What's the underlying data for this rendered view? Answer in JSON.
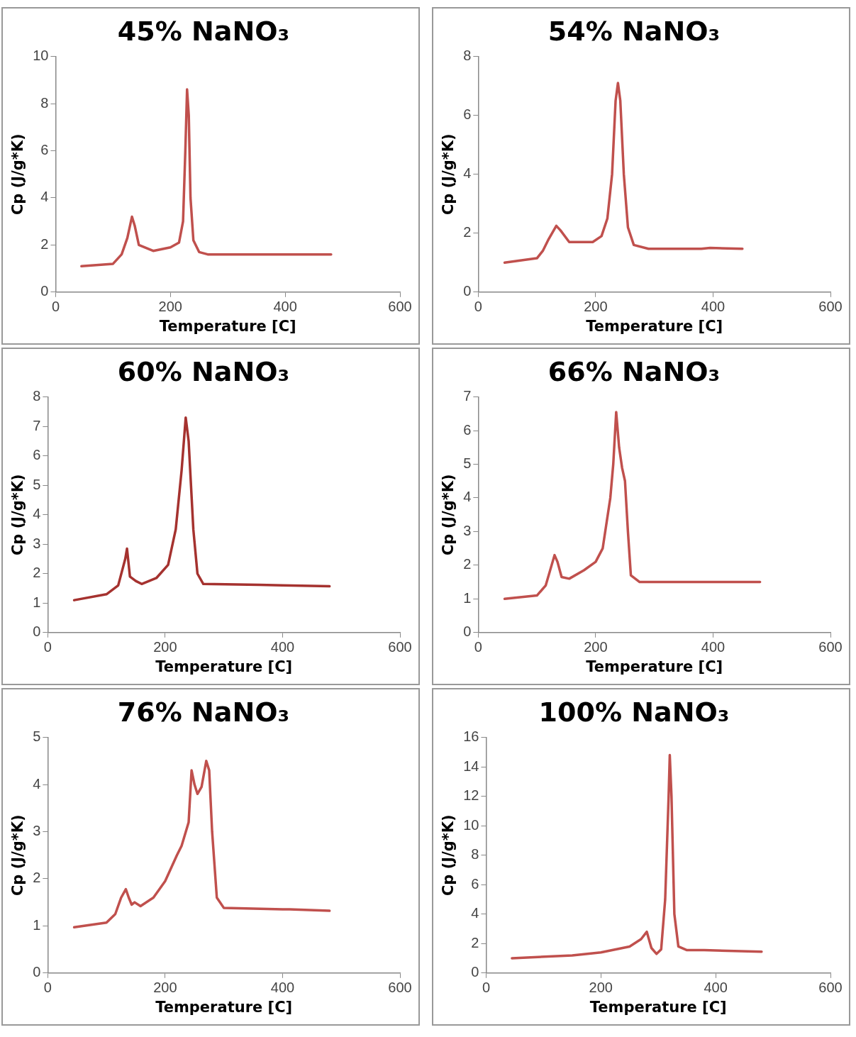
{
  "chart_data": [
    {
      "type": "line",
      "title": "45% NaNO₃",
      "xlabel": "Temperature [C]",
      "ylabel": "Cp (J/g*K)",
      "xlim": [
        0,
        600
      ],
      "xticks": [
        0,
        200,
        400,
        600
      ],
      "ylim": [
        0,
        10
      ],
      "yticks": [
        0,
        2,
        4,
        6,
        8,
        10
      ],
      "grid": false,
      "legend": false,
      "marker": "none",
      "line_style": "solid",
      "color": "#c0504d",
      "x": [
        45,
        100,
        115,
        125,
        133,
        138,
        145,
        170,
        200,
        215,
        222,
        226,
        229,
        232,
        235,
        240,
        250,
        265,
        400,
        480
      ],
      "values": [
        1.1,
        1.2,
        1.6,
        2.3,
        3.2,
        2.8,
        2.0,
        1.75,
        1.9,
        2.1,
        3,
        6,
        8.6,
        7.5,
        4,
        2.2,
        1.7,
        1.6,
        1.6,
        1.6
      ]
    },
    {
      "type": "line",
      "title": "54% NaNO₃",
      "xlabel": "Temperature [C]",
      "ylabel": "Cp (J/g*K)",
      "xlim": [
        0,
        600
      ],
      "xticks": [
        0,
        200,
        400,
        600
      ],
      "ylim": [
        0,
        8
      ],
      "yticks": [
        0,
        2,
        4,
        6,
        8
      ],
      "grid": false,
      "legend": false,
      "marker": "none",
      "line_style": "solid",
      "color": "#c0504d",
      "x": [
        45,
        100,
        110,
        120,
        133,
        140,
        155,
        175,
        195,
        210,
        220,
        228,
        234,
        238,
        242,
        248,
        255,
        265,
        290,
        380,
        395,
        450
      ],
      "values": [
        1.0,
        1.15,
        1.4,
        1.8,
        2.25,
        2.1,
        1.7,
        1.7,
        1.7,
        1.9,
        2.5,
        4,
        6.5,
        7.1,
        6.5,
        4,
        2.2,
        1.6,
        1.47,
        1.47,
        1.5,
        1.47
      ]
    },
    {
      "type": "line",
      "title": "60% NaNO₃",
      "xlabel": "Temperature [C]",
      "ylabel": "Cp (J/g*K)",
      "xlim": [
        0,
        600
      ],
      "xticks": [
        0,
        200,
        400,
        600
      ],
      "ylim": [
        0,
        8
      ],
      "yticks": [
        0,
        1,
        2,
        3,
        4,
        5,
        6,
        7,
        8
      ],
      "grid": false,
      "legend": false,
      "marker": "none",
      "line_style": "solid",
      "color": "#a5322f",
      "x": [
        45,
        100,
        120,
        132,
        135,
        140,
        150,
        160,
        185,
        205,
        218,
        228,
        235,
        240,
        248,
        255,
        265,
        360,
        400,
        480
      ],
      "values": [
        1.1,
        1.3,
        1.6,
        2.5,
        2.85,
        1.9,
        1.75,
        1.65,
        1.85,
        2.3,
        3.5,
        5.5,
        7.3,
        6.5,
        3.5,
        2.0,
        1.65,
        1.62,
        1.6,
        1.57
      ]
    },
    {
      "type": "line",
      "title": "66% NaNO₃",
      "xlabel": "Temperature [C]",
      "ylabel": "Cp (J/g*K)",
      "xlim": [
        0,
        600
      ],
      "xticks": [
        0,
        200,
        400,
        600
      ],
      "ylim": [
        0,
        7
      ],
      "yticks": [
        0,
        1,
        2,
        3,
        4,
        5,
        6,
        7
      ],
      "grid": false,
      "legend": false,
      "marker": "none",
      "line_style": "solid",
      "color": "#c0504d",
      "x": [
        45,
        100,
        115,
        125,
        130,
        135,
        142,
        155,
        180,
        200,
        212,
        225,
        230,
        235,
        240,
        245,
        250,
        255,
        260,
        275,
        400,
        480
      ],
      "values": [
        1.0,
        1.1,
        1.4,
        2.0,
        2.3,
        2.1,
        1.65,
        1.6,
        1.85,
        2.1,
        2.5,
        4,
        5,
        6.55,
        5.5,
        4.9,
        4.5,
        3,
        1.7,
        1.5,
        1.5,
        1.5
      ]
    },
    {
      "type": "line",
      "title": "76% NaNO₃",
      "xlabel": "Temperature [C]",
      "ylabel": "Cp (J/g*K)",
      "xlim": [
        0,
        600
      ],
      "xticks": [
        0,
        200,
        400,
        600
      ],
      "ylim": [
        0,
        5
      ],
      "yticks": [
        0,
        1,
        2,
        3,
        4,
        5
      ],
      "grid": false,
      "legend": false,
      "marker": "none",
      "line_style": "solid",
      "color": "#c0504d",
      "x": [
        45,
        100,
        115,
        125,
        133,
        138,
        143,
        148,
        158,
        180,
        200,
        220,
        228,
        240,
        245,
        250,
        255,
        262,
        270,
        275,
        280,
        288,
        300,
        400,
        412,
        480
      ],
      "values": [
        0.97,
        1.07,
        1.25,
        1.6,
        1.78,
        1.6,
        1.45,
        1.5,
        1.42,
        1.6,
        1.95,
        2.5,
        2.7,
        3.2,
        4.3,
        4.0,
        3.8,
        3.95,
        4.5,
        4.3,
        3.0,
        1.6,
        1.38,
        1.35,
        1.35,
        1.32
      ]
    },
    {
      "type": "line",
      "title": "100% NaNO₃",
      "xlabel": "Temperature [C]",
      "ylabel": "Cp (J/g*K)",
      "xlim": [
        0,
        600
      ],
      "xticks": [
        0,
        200,
        400,
        600
      ],
      "ylim": [
        0,
        16
      ],
      "yticks": [
        0,
        2,
        4,
        6,
        8,
        10,
        12,
        14,
        16
      ],
      "grid": false,
      "legend": false,
      "marker": "none",
      "line_style": "solid",
      "color": "#c0504d",
      "x": [
        45,
        150,
        200,
        250,
        270,
        280,
        288,
        297,
        305,
        312,
        318,
        320,
        323,
        328,
        335,
        350,
        380,
        480
      ],
      "values": [
        1.0,
        1.2,
        1.4,
        1.8,
        2.3,
        2.8,
        1.7,
        1.3,
        1.6,
        5,
        12,
        14.8,
        12,
        4,
        1.8,
        1.55,
        1.55,
        1.45
      ]
    }
  ]
}
